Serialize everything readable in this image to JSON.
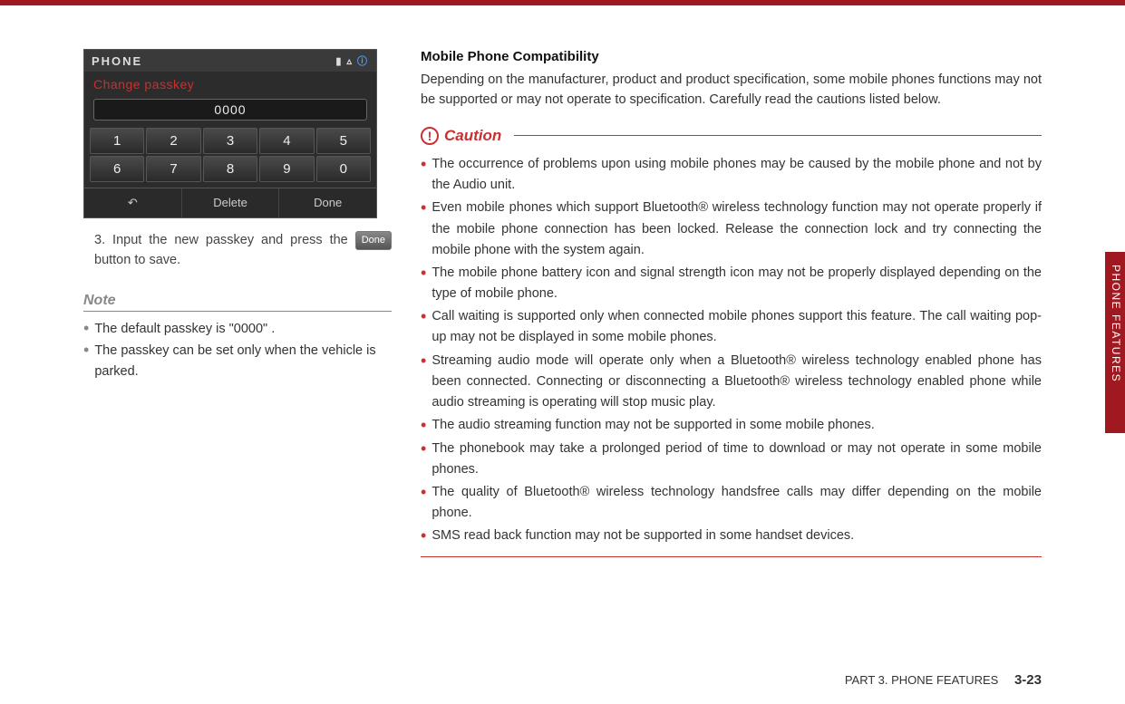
{
  "colors": {
    "brand_red": "#a01820",
    "caution_red": "#c93030",
    "text": "#333333",
    "muted": "#888888",
    "bg": "#ffffff"
  },
  "phone": {
    "title": "PHONE",
    "subtitle": "Change passkey",
    "value": "0000",
    "keys": [
      "1",
      "2",
      "3",
      "4",
      "5",
      "6",
      "7",
      "8",
      "9",
      "0"
    ],
    "back": "↶",
    "delete": "Delete",
    "done": "Done"
  },
  "step": {
    "num": "3.",
    "text_a": "Input the new passkey and press the ",
    "done_label": "Done",
    "text_b": " button to save."
  },
  "note": {
    "heading": "Note",
    "items": [
      "The default passkey is \"0000\" .",
      "The passkey can be set only when the vehicle is parked."
    ]
  },
  "section": {
    "title": "Mobile Phone Compatibility",
    "intro": "Depending on the manufacturer, product and product specification, some mobile phones functions may not be supported or may not operate to specification. Carefully read the cautions listed below."
  },
  "caution": {
    "label": "Caution",
    "items": [
      "The occurrence of problems upon using mobile phones may be caused by the mobile phone and not by the Audio unit.",
      "Even mobile phones which support Bluetooth® wireless technology function may not operate properly if the mobile phone connection has been locked. Release the connection lock and try connecting the mobile phone with the system again.",
      "The mobile phone battery icon and signal strength icon may not be properly displayed depending on the type of mobile phone.",
      "Call waiting is supported only when connected mobile phones support this feature. The call waiting pop-up may not be displayed in some mobile phones.",
      "Streaming audio mode will operate only when a Bluetooth® wireless technology enabled phone has been connected. Connecting or disconnecting a Bluetooth® wireless technology enabled phone while audio streaming is operating will stop music play.",
      "The audio streaming function may not be supported in some mobile phones.",
      "The phonebook may take a prolonged period of time to download or may not operate in some mobile phones.",
      "The quality of Bluetooth® wireless technology handsfree calls may differ depending on the mobile phone.",
      "SMS read back function may not be supported in some handset devices."
    ]
  },
  "side_label": "PHONE FEATURES",
  "footer": {
    "part": "PART 3. PHONE FEATURES",
    "page": "3-23"
  }
}
